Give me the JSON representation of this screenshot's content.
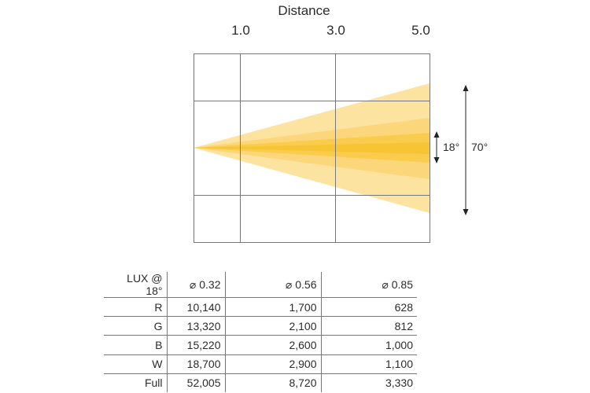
{
  "diagram": {
    "title": "Distance",
    "distance_labels": [
      "1.0",
      "3.0",
      "5.0"
    ],
    "angles": {
      "narrow": "18°",
      "wide": "70°"
    },
    "colors": {
      "wide_beam": "#FDE3A0",
      "mid_beam": "#FCD67A",
      "narrow_beam": "#F9CC4E",
      "core_beam": "#F7C534",
      "grid": "#777777"
    }
  },
  "table": {
    "header": [
      "LUX @ 18°",
      "⌀ 0.32",
      "⌀ 0.56",
      "⌀ 0.85"
    ],
    "rows": [
      [
        "R",
        "10,140",
        "1,700",
        "628"
      ],
      [
        "G",
        "13,320",
        "2,100",
        "812"
      ],
      [
        "B",
        "15,220",
        "2,600",
        "1,000"
      ],
      [
        "W",
        "18,700",
        "2,900",
        "1,100"
      ],
      [
        "Full",
        "52,005",
        "8,720",
        "3,330"
      ]
    ]
  }
}
